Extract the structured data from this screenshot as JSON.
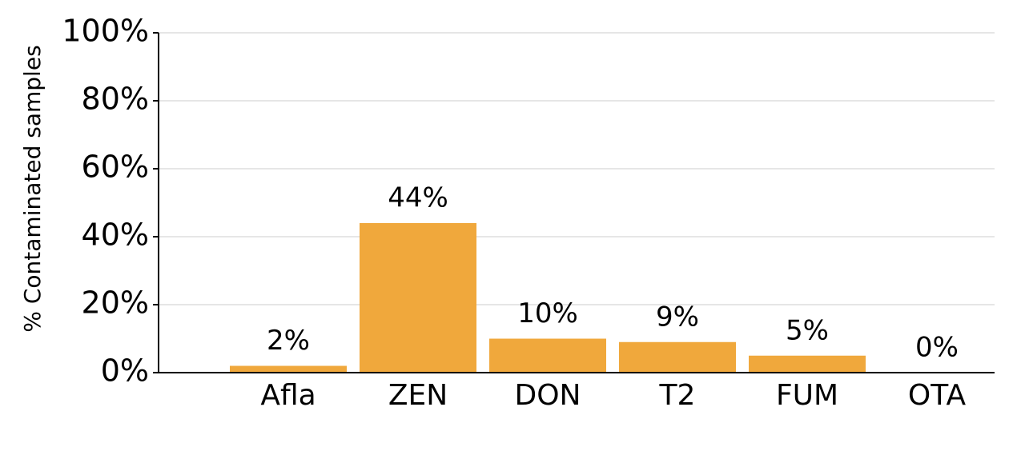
{
  "chart_data": {
    "type": "bar",
    "y_label": "% Contaminated samples",
    "categories": [
      "Afla",
      "ZEN",
      "DON",
      "T2",
      "FUM",
      "OTA"
    ],
    "values": [
      2,
      44,
      10,
      9,
      5,
      0
    ],
    "value_labels": [
      "2%",
      "44%",
      "10%",
      "9%",
      "5%",
      "0%"
    ],
    "color": "#f0a83c",
    "ylim": [
      0,
      100
    ],
    "yticks": [
      {
        "value": 0,
        "label": "0%"
      },
      {
        "value": 20,
        "label": "20%"
      },
      {
        "value": 40,
        "label": "40%"
      },
      {
        "value": 60,
        "label": "60%"
      },
      {
        "value": 80,
        "label": "80%"
      },
      {
        "value": 100,
        "label": "100%"
      }
    ],
    "grid": true
  }
}
